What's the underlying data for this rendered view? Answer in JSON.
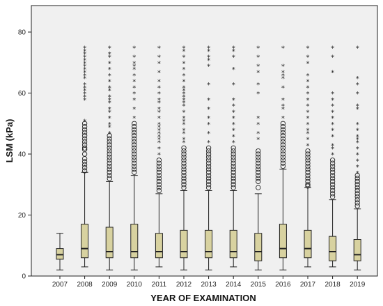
{
  "chart_data": {
    "type": "boxplot",
    "xlabel": "YEAR OF EXAMINATION",
    "ylabel": "LSM (kPa)",
    "ylim": [
      0,
      80
    ],
    "yticks": [
      0,
      20,
      40,
      60,
      80
    ],
    "grid": false,
    "colors": {
      "box_fill": "#d8d2a0",
      "plot_bg": "#f0f0f0",
      "stroke": "#222222"
    },
    "categories": [
      "2007",
      "2008",
      "2009",
      "2010",
      "2011",
      "2012",
      "2013",
      "2014",
      "2015",
      "2016",
      "2017",
      "2018",
      "2019"
    ],
    "boxes": [
      {
        "q1": 5.5,
        "median": 7,
        "q3": 9,
        "whisker_low": 2,
        "whisker_high": 14,
        "outliers": [],
        "extremes": []
      },
      {
        "q1": 6,
        "median": 9,
        "q3": 17,
        "whisker_low": 3,
        "whisker_high": 34,
        "outliers": [
          34.5,
          35.5,
          36.5,
          37.5,
          38.5,
          40,
          41.5,
          42,
          43,
          44,
          45,
          46,
          47,
          48,
          49,
          50
        ],
        "extremes": [
          51,
          58,
          59,
          60,
          61,
          62,
          63,
          65,
          66,
          67,
          68,
          69,
          70,
          71,
          72,
          73,
          74,
          75
        ]
      },
      {
        "q1": 6,
        "median": 8,
        "q3": 16,
        "whisker_low": 2,
        "whisker_high": 31,
        "outliers": [
          32,
          33,
          34,
          35,
          36,
          37,
          38,
          39,
          40,
          41,
          42,
          43,
          44,
          45,
          46
        ],
        "extremes": [
          47,
          49,
          50,
          52,
          54,
          55,
          57,
          58,
          59,
          61,
          62,
          64,
          66,
          68,
          70,
          72,
          73,
          75
        ]
      },
      {
        "q1": 6,
        "median": 8,
        "q3": 17,
        "whisker_low": 2,
        "whisker_high": 33,
        "outliers": [
          34,
          35,
          36,
          37,
          38,
          39,
          40,
          41,
          42,
          43,
          44,
          45,
          46,
          47,
          48,
          49,
          50
        ],
        "extremes": [
          52,
          55,
          58,
          60,
          62,
          64,
          66,
          68,
          69,
          70,
          72,
          75
        ]
      },
      {
        "q1": 6,
        "median": 8,
        "q3": 14,
        "whisker_low": 3,
        "whisker_high": 27,
        "outliers": [
          28,
          29,
          30,
          31,
          32,
          33,
          34,
          35,
          36,
          37,
          38
        ],
        "extremes": [
          40,
          42,
          44,
          45,
          46,
          47,
          48,
          49,
          50,
          52,
          54,
          55,
          57,
          58,
          60,
          62,
          64,
          67,
          70,
          72,
          75
        ]
      },
      {
        "q1": 6,
        "median": 8,
        "q3": 15,
        "whisker_low": 2,
        "whisker_high": 28,
        "outliers": [
          29,
          30,
          31,
          32,
          33,
          34,
          35,
          36,
          37,
          38,
          39,
          40,
          41,
          42
        ],
        "extremes": [
          44,
          45,
          47,
          48,
          50,
          51,
          52,
          54,
          56,
          57,
          58,
          59,
          60,
          61,
          62,
          64,
          66,
          68,
          70,
          72,
          74,
          75
        ]
      },
      {
        "q1": 6,
        "median": 8,
        "q3": 15,
        "whisker_low": 2,
        "whisker_high": 28,
        "outliers": [
          29,
          30,
          31,
          32,
          33,
          34,
          35,
          36,
          37,
          38,
          39,
          40,
          41,
          42
        ],
        "extremes": [
          44,
          47,
          50,
          52,
          55,
          58,
          63,
          69,
          71,
          72,
          74,
          75
        ]
      },
      {
        "q1": 6,
        "median": 8,
        "q3": 15,
        "whisker_low": 3,
        "whisker_high": 28,
        "outliers": [
          29,
          30,
          31,
          32,
          33,
          34,
          35,
          36,
          37,
          38,
          39,
          40,
          41,
          42
        ],
        "extremes": [
          44,
          46,
          48,
          50,
          52,
          54,
          56,
          58,
          63,
          68,
          72,
          74,
          75
        ]
      },
      {
        "q1": 5,
        "median": 8,
        "q3": 14,
        "whisker_low": 2,
        "whisker_high": 27,
        "outliers": [
          29,
          31,
          32,
          33,
          34,
          35,
          36,
          37,
          38,
          39,
          40,
          41
        ],
        "extremes": [
          45,
          47,
          50,
          52,
          60,
          63,
          67,
          69,
          72,
          75
        ]
      },
      {
        "q1": 6,
        "median": 9,
        "q3": 17,
        "whisker_low": 2,
        "whisker_high": 35,
        "outliers": [
          36,
          37,
          38,
          39,
          40,
          41,
          42,
          43,
          44,
          45,
          46,
          47,
          48,
          49,
          50
        ],
        "extremes": [
          52,
          55,
          56,
          58,
          62,
          65,
          66,
          67,
          69,
          75
        ]
      },
      {
        "q1": 6,
        "median": 9,
        "q3": 15,
        "whisker_low": 3,
        "whisker_high": 29,
        "outliers": [
          29.5,
          30,
          31,
          32,
          33,
          34,
          35,
          36,
          37,
          38,
          39,
          40,
          41
        ],
        "extremes": [
          43,
          45,
          47,
          48,
          50,
          52,
          54,
          56,
          58,
          60,
          62,
          64,
          66,
          70,
          72,
          75
        ]
      },
      {
        "q1": 5,
        "median": 8,
        "q3": 13,
        "whisker_low": 3,
        "whisker_high": 25,
        "outliers": [
          26,
          27,
          28,
          29,
          30,
          31,
          32,
          33,
          34,
          35,
          36,
          37,
          38
        ],
        "extremes": [
          40,
          42,
          43,
          46,
          48,
          50,
          52,
          54,
          56,
          58,
          60,
          67,
          72,
          75
        ]
      },
      {
        "q1": 5,
        "median": 7,
        "q3": 12,
        "whisker_low": 2,
        "whisker_high": 22,
        "outliers": [
          23,
          24,
          25,
          26,
          27,
          28,
          29,
          30,
          31,
          32,
          33
        ],
        "extremes": [
          34,
          36,
          38,
          40,
          42,
          44,
          45,
          46,
          48,
          50,
          55,
          56,
          60,
          63,
          65,
          75
        ]
      }
    ]
  }
}
